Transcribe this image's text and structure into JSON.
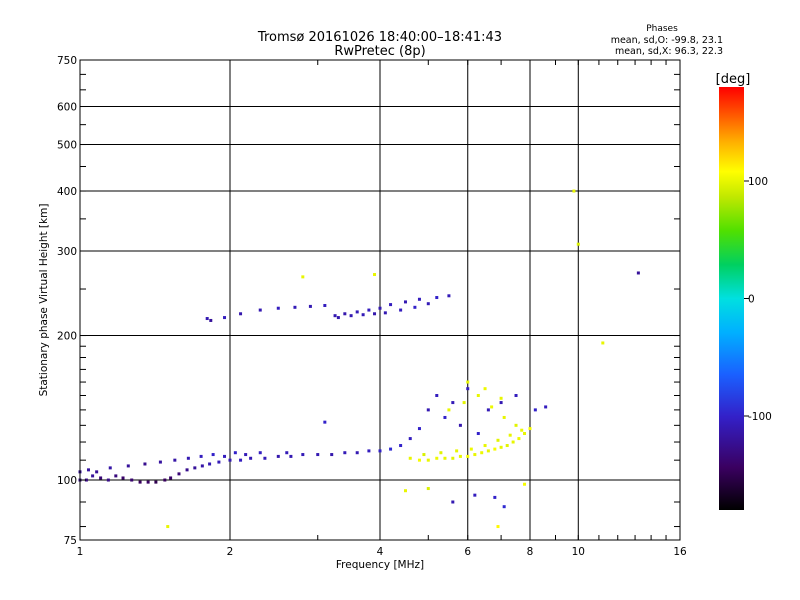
{
  "chart_data": {
    "type": "scatter",
    "title": "Tromsø 20161026 18:40:00–18:41:43",
    "subtitle": "RwPretec (8p)",
    "xlabel": "Frequency [MHz]",
    "ylabel": "Stationary phase Virtual Height [km]",
    "x_scale": "log",
    "y_scale": "log",
    "xlim": [
      1,
      16
    ],
    "ylim": [
      75,
      750
    ],
    "x_ticks": [
      1,
      2,
      4,
      6,
      8,
      10,
      16
    ],
    "x_tick_labels": [
      "1",
      "2",
      "4",
      "6",
      "8",
      "10",
      "16"
    ],
    "y_ticks": [
      75,
      100,
      200,
      300,
      400,
      500,
      600,
      750
    ],
    "y_tick_labels": [
      "75",
      "100",
      "200",
      "300",
      "400",
      "500",
      "600",
      "750"
    ],
    "grid": true,
    "legend": {
      "title": "Phases",
      "lines": [
        "mean, sd,O: -99.8, 23.1",
        "mean, sd,X:  96.3, 22.3"
      ],
      "placement": "top-right"
    },
    "colorbar": {
      "label": "[deg]",
      "range": [
        -180,
        180
      ],
      "ticks": [
        -100,
        0,
        100
      ],
      "tick_labels": [
        "-100",
        "0",
        "100"
      ]
    },
    "series": [
      {
        "mode": "O",
        "points": [
          [
            1.0,
            100,
            -125
          ],
          [
            1.03,
            100,
            -130
          ],
          [
            1.06,
            102,
            -120
          ],
          [
            1.1,
            101,
            -135
          ],
          [
            1.14,
            100,
            -128
          ],
          [
            1.18,
            102,
            -132
          ],
          [
            1.22,
            101,
            -140
          ],
          [
            1.27,
            100,
            -138
          ],
          [
            1.32,
            99,
            -145
          ],
          [
            1.37,
            99,
            -142
          ],
          [
            1.42,
            99,
            -150
          ],
          [
            1.48,
            100,
            -145
          ],
          [
            1.52,
            101,
            -140
          ],
          [
            1.58,
            103,
            -135
          ],
          [
            1.64,
            105,
            -125
          ],
          [
            1.7,
            106,
            -120
          ],
          [
            1.76,
            107,
            -115
          ],
          [
            1.82,
            108,
            -110
          ],
          [
            1.9,
            109,
            -108
          ],
          [
            2.0,
            110,
            -110
          ],
          [
            2.1,
            110,
            -105
          ],
          [
            2.2,
            111,
            -110
          ],
          [
            2.35,
            111,
            -108
          ],
          [
            2.5,
            112,
            -112
          ],
          [
            2.65,
            112,
            -110
          ],
          [
            2.8,
            113,
            -108
          ],
          [
            3.0,
            113,
            -110
          ],
          [
            3.2,
            113,
            -112
          ],
          [
            3.4,
            114,
            -108
          ],
          [
            3.6,
            114,
            -110
          ],
          [
            3.8,
            115,
            -105
          ],
          [
            4.0,
            115,
            -100
          ],
          [
            4.2,
            116,
            -95
          ],
          [
            4.4,
            118,
            -100
          ],
          [
            4.6,
            122,
            -105
          ],
          [
            4.8,
            128,
            -100
          ],
          [
            5.0,
            140,
            -110
          ],
          [
            5.2,
            150,
            -105
          ],
          [
            5.4,
            135,
            -100
          ],
          [
            5.6,
            145,
            -108
          ],
          [
            5.8,
            130,
            -112
          ],
          [
            6.0,
            155,
            -105
          ],
          [
            6.3,
            125,
            -100
          ],
          [
            6.6,
            140,
            -108
          ],
          [
            7.0,
            145,
            -110
          ],
          [
            7.5,
            150,
            -105
          ],
          [
            8.2,
            140,
            -100
          ],
          [
            8.6,
            142,
            -105
          ],
          [
            1.0,
            104,
            -120
          ],
          [
            1.04,
            105,
            -118
          ],
          [
            1.08,
            104,
            -122
          ],
          [
            1.15,
            106,
            -115
          ],
          [
            1.25,
            107,
            -120
          ],
          [
            1.35,
            108,
            -125
          ],
          [
            1.45,
            109,
            -118
          ],
          [
            1.55,
            110,
            -115
          ],
          [
            1.65,
            111,
            -110
          ],
          [
            1.75,
            112,
            -105
          ],
          [
            1.85,
            113,
            -100
          ],
          [
            1.95,
            112,
            -105
          ],
          [
            2.05,
            114,
            -100
          ],
          [
            2.15,
            113,
            -108
          ],
          [
            2.3,
            114,
            -104
          ],
          [
            2.6,
            114,
            -108
          ],
          [
            1.8,
            217,
            -110
          ],
          [
            1.83,
            215,
            -120
          ],
          [
            1.95,
            218,
            -105
          ],
          [
            2.1,
            222,
            -112
          ],
          [
            2.3,
            226,
            -110
          ],
          [
            2.5,
            228,
            -105
          ],
          [
            2.7,
            229,
            -108
          ],
          [
            2.9,
            230,
            -110
          ],
          [
            3.1,
            231,
            -105
          ],
          [
            3.25,
            220,
            -110
          ],
          [
            3.4,
            222,
            -112
          ],
          [
            3.6,
            224,
            -108
          ],
          [
            3.8,
            226,
            -105
          ],
          [
            4.0,
            228,
            -110
          ],
          [
            4.2,
            232,
            -105
          ],
          [
            4.5,
            235,
            -110
          ],
          [
            4.8,
            238,
            -105
          ],
          [
            5.2,
            240,
            -100
          ],
          [
            5.5,
            242,
            -108
          ],
          [
            3.3,
            218,
            -112
          ],
          [
            3.5,
            220,
            -110
          ],
          [
            3.7,
            221,
            -108
          ],
          [
            3.9,
            222,
            -112
          ],
          [
            4.1,
            223,
            -110
          ],
          [
            4.4,
            226,
            -105
          ],
          [
            4.7,
            229,
            -100
          ],
          [
            5.0,
            233,
            -108
          ],
          [
            3.1,
            132,
            -100
          ],
          [
            5.6,
            90,
            -110
          ],
          [
            6.2,
            93,
            -105
          ],
          [
            6.8,
            92,
            -100
          ],
          [
            7.1,
            88,
            -95
          ],
          [
            13.2,
            270,
            -120
          ]
        ]
      },
      {
        "mode": "X",
        "points": [
          [
            4.6,
            111,
            100
          ],
          [
            4.8,
            110,
            105
          ],
          [
            5.0,
            110,
            100
          ],
          [
            5.2,
            111,
            102
          ],
          [
            5.4,
            111,
            100
          ],
          [
            5.6,
            111,
            98
          ],
          [
            5.8,
            112,
            100
          ],
          [
            6.0,
            112,
            105
          ],
          [
            6.2,
            113,
            100
          ],
          [
            6.4,
            114,
            102
          ],
          [
            6.6,
            115,
            100
          ],
          [
            6.8,
            116,
            105
          ],
          [
            7.0,
            117,
            100
          ],
          [
            7.2,
            118,
            98
          ],
          [
            7.4,
            120,
            100
          ],
          [
            7.6,
            122,
            102
          ],
          [
            7.8,
            125,
            100
          ],
          [
            8.0,
            128,
            105
          ],
          [
            4.9,
            113,
            95
          ],
          [
            5.3,
            114,
            98
          ],
          [
            5.7,
            115,
            100
          ],
          [
            6.1,
            116,
            102
          ],
          [
            6.5,
            118,
            100
          ],
          [
            6.9,
            121,
            98
          ],
          [
            7.3,
            124,
            100
          ],
          [
            7.7,
            127,
            102
          ],
          [
            5.5,
            140,
            100
          ],
          [
            5.9,
            145,
            98
          ],
          [
            6.3,
            150,
            100
          ],
          [
            6.7,
            142,
            102
          ],
          [
            7.1,
            135,
            100
          ],
          [
            7.5,
            130,
            98
          ],
          [
            6.0,
            160,
            100
          ],
          [
            6.5,
            155,
            102
          ],
          [
            7.0,
            148,
            100
          ],
          [
            2.8,
            265,
            100
          ],
          [
            3.9,
            268,
            100
          ],
          [
            4.5,
            95,
            100
          ],
          [
            5.0,
            96,
            95
          ],
          [
            6.9,
            80,
            110
          ],
          [
            7.8,
            98,
            105
          ],
          [
            1.5,
            80,
            100
          ],
          [
            9.8,
            400,
            100
          ],
          [
            10.0,
            310,
            95
          ],
          [
            11.2,
            193,
            100
          ]
        ]
      }
    ]
  }
}
